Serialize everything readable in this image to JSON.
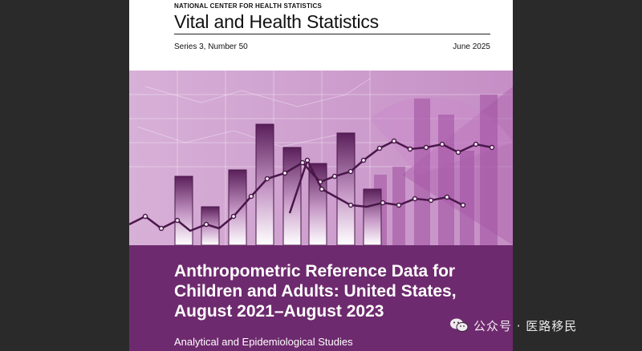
{
  "cover": {
    "agency": "NATIONAL CENTER FOR HEALTH STATISTICS",
    "journal": "Vital and Health Statistics",
    "series": "Series 3, Number 50",
    "date": "June 2025",
    "title_lines": [
      "Anthropometric Reference Data for",
      "Children and Adults: United States,",
      "August 2021–August 2023"
    ],
    "subtitle": "Analytical and Epidemiological Studies"
  },
  "colors": {
    "purple_dark": "#6e2a6e",
    "purple_mid": "#a45aa4",
    "purple_light": "#d9b3d9",
    "line": "#4a174a"
  },
  "watermark": {
    "text": "公众号 · 医路移民",
    "icon": "wechat-icon"
  }
}
